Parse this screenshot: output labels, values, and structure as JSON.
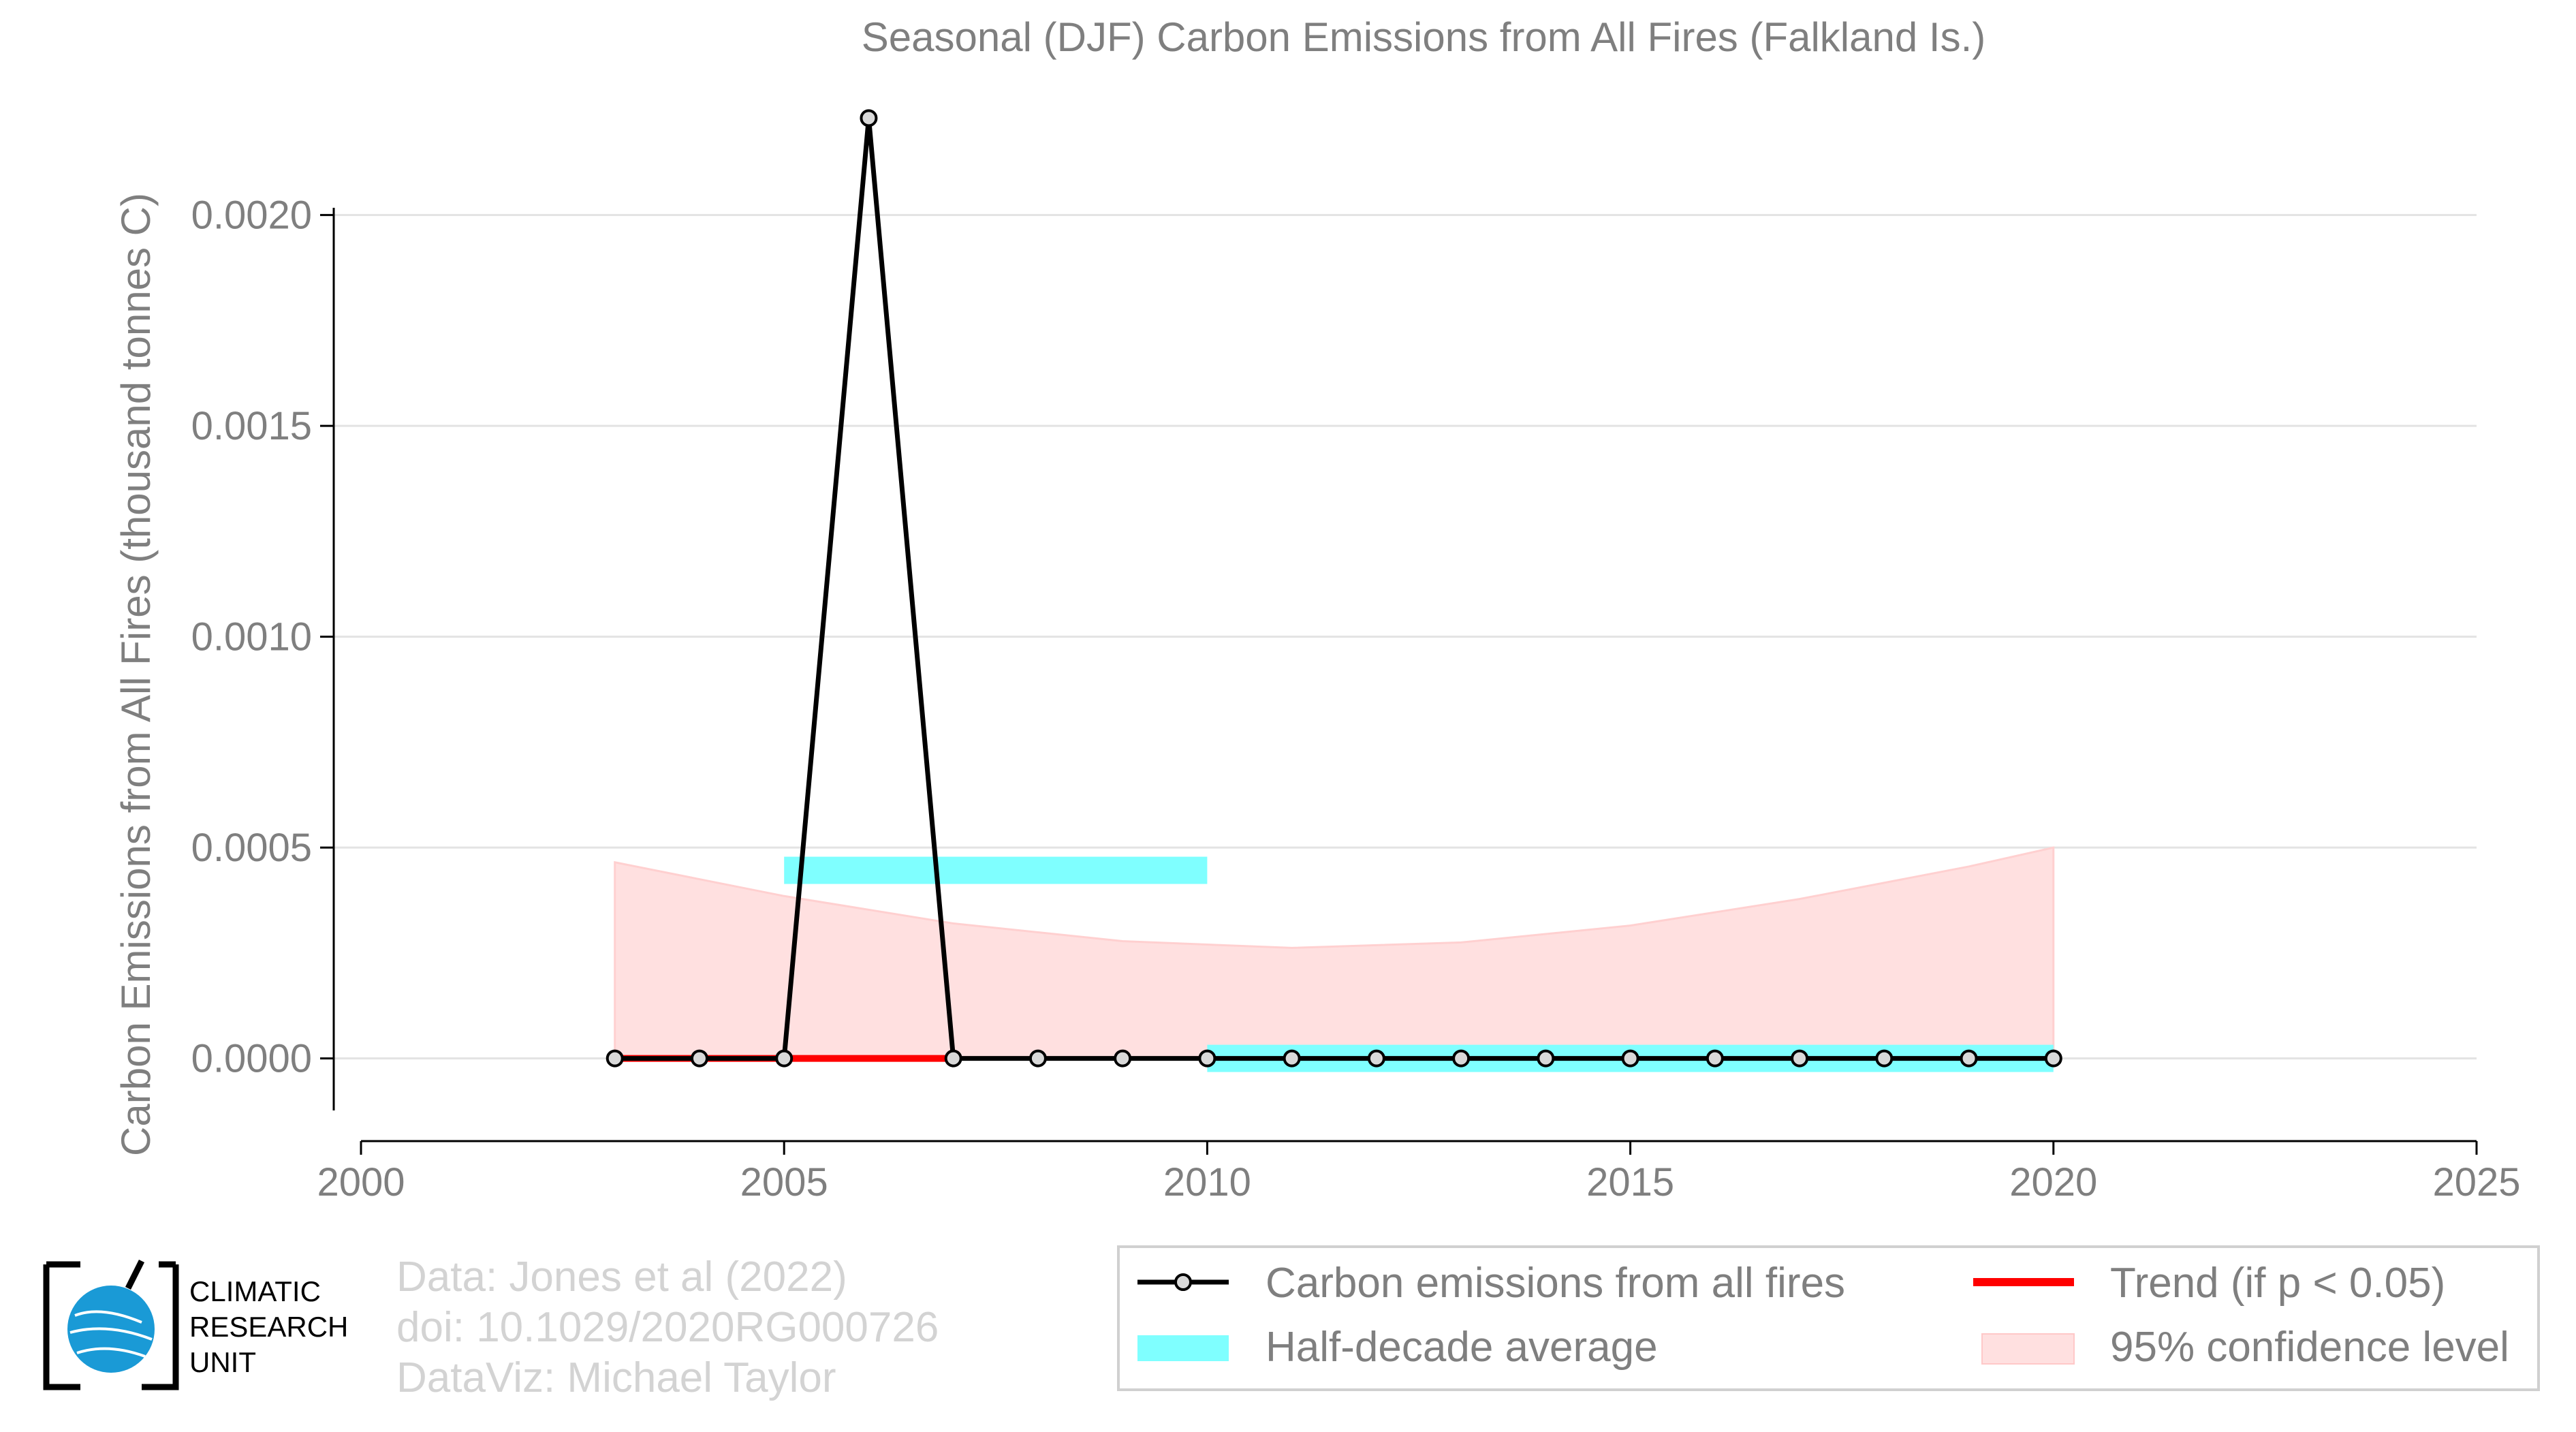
{
  "chart_data": {
    "type": "line",
    "title": "Seasonal (DJF) Carbon Emissions from All Fires (Falkland Is.)",
    "ylabel": "Carbon Emissions from All Fires (thousand tonnes C)",
    "xlabel": "",
    "xlim": [
      2000,
      2025
    ],
    "ylim": [
      -0.00018,
      0.0023
    ],
    "x_ticks": [
      "2000",
      "2005",
      "2010",
      "2015",
      "2020",
      "2025"
    ],
    "y_ticks": [
      "0.0000",
      "0.0005",
      "0.0010",
      "0.0015",
      "0.0020"
    ],
    "grid": true,
    "series": [
      {
        "name": "Carbon emissions from all fires",
        "color": "#000000",
        "x": [
          2003,
          2004,
          2005,
          2006,
          2007,
          2008,
          2009,
          2010,
          2011,
          2012,
          2013,
          2014,
          2015,
          2016,
          2017,
          2018,
          2019,
          2020
        ],
        "y": [
          0,
          0,
          0,
          0.00223,
          0,
          0,
          0,
          0,
          0,
          0,
          0,
          0,
          0,
          0,
          0,
          0,
          0,
          0
        ]
      },
      {
        "name": "Half-decade average",
        "color": "#7fffff",
        "segments": [
          {
            "x_start": 2005,
            "x_end": 2010,
            "y": 0.000446
          },
          {
            "x_start": 2010,
            "x_end": 2020,
            "y": 0.0
          }
        ]
      },
      {
        "name": "Trend (if p < 0.05)",
        "color": "#ff0000",
        "x": [
          2003,
          2007
        ],
        "y": [
          0,
          0
        ]
      },
      {
        "name": "95% confidence level",
        "color": "#ffe0e0",
        "x": [
          2003,
          2005,
          2007,
          2009,
          2011,
          2013,
          2015,
          2017,
          2019,
          2020
        ],
        "upper": [
          0.000465,
          0.000385,
          0.00032,
          0.000278,
          0.000262,
          0.000275,
          0.000315,
          0.000378,
          0.000455,
          0.0005
        ],
        "lower": [
          0,
          0,
          0,
          0,
          0,
          0,
          0,
          0,
          0,
          0
        ]
      }
    ],
    "legend": {
      "placement": "bottom-right",
      "entries": [
        "Carbon emissions from all fires",
        "Trend (if p < 0.05)",
        "Half-decade average",
        "95% confidence level"
      ]
    }
  },
  "credits": {
    "data": "Data: Jones et al (2022)",
    "doi": "doi: 10.1029/2020RG000726",
    "dataviz": "DataViz: Michael Taylor"
  },
  "logo": {
    "line1": "CLIMATIC",
    "line2": "RESEARCH",
    "line3": "UNIT",
    "color": "#1a9ad6"
  }
}
